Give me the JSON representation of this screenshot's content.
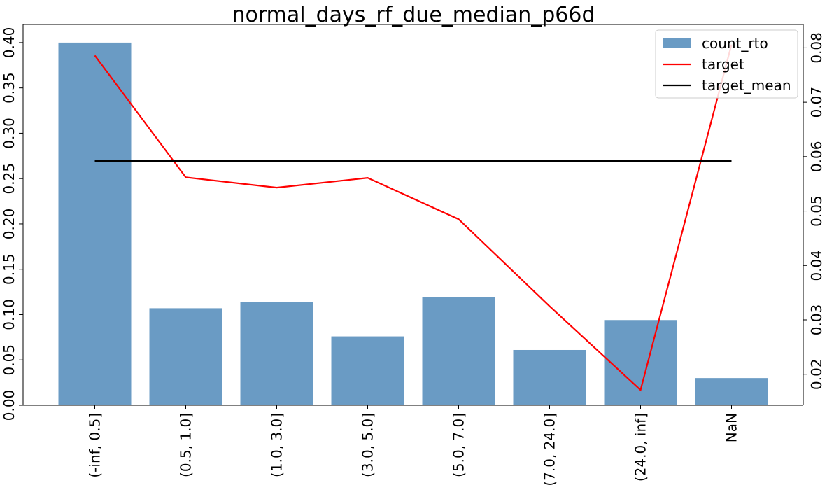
{
  "chart_data": {
    "type": "bar",
    "title": "normal_days_rf_due_median_p66d",
    "categories": [
      "(-inf, 0.5]",
      "(0.5, 1.0]",
      "(1.0, 3.0]",
      "(3.0, 5.0]",
      "(5.0, 7.0]",
      "(7.0, 24.0]",
      "(24.0, inf]",
      "NaN"
    ],
    "series": [
      {
        "name": "count_rto",
        "axis": "left",
        "kind": "bar",
        "color": "#6a9bc4",
        "values": [
          0.4,
          0.107,
          0.114,
          0.076,
          0.119,
          0.061,
          0.094,
          0.03
        ]
      },
      {
        "name": "target",
        "axis": "right",
        "kind": "line",
        "color": "#ff0000",
        "values": [
          0.0786,
          0.0562,
          0.0543,
          0.0561,
          0.0485,
          0.0325,
          0.0171,
          0.0806
        ]
      },
      {
        "name": "target_mean",
        "axis": "right",
        "kind": "line",
        "color": "#000000",
        "values": [
          0.0592,
          0.0592,
          0.0592,
          0.0592,
          0.0592,
          0.0592,
          0.0592,
          0.0592
        ]
      }
    ],
    "y_left": {
      "lim": [
        0,
        0.42
      ],
      "ticks": [
        "0.00",
        "0.05",
        "0.10",
        "0.15",
        "0.20",
        "0.25",
        "0.30",
        "0.35",
        "0.40"
      ]
    },
    "y_right": {
      "lim": [
        0.0143,
        0.0843
      ],
      "ticks": [
        "0.02",
        "0.03",
        "0.04",
        "0.05",
        "0.06",
        "0.07",
        "0.08"
      ]
    },
    "legend": {
      "position": "top-right",
      "entries": [
        "count_rto",
        "target",
        "target_mean"
      ]
    },
    "grid": false
  }
}
